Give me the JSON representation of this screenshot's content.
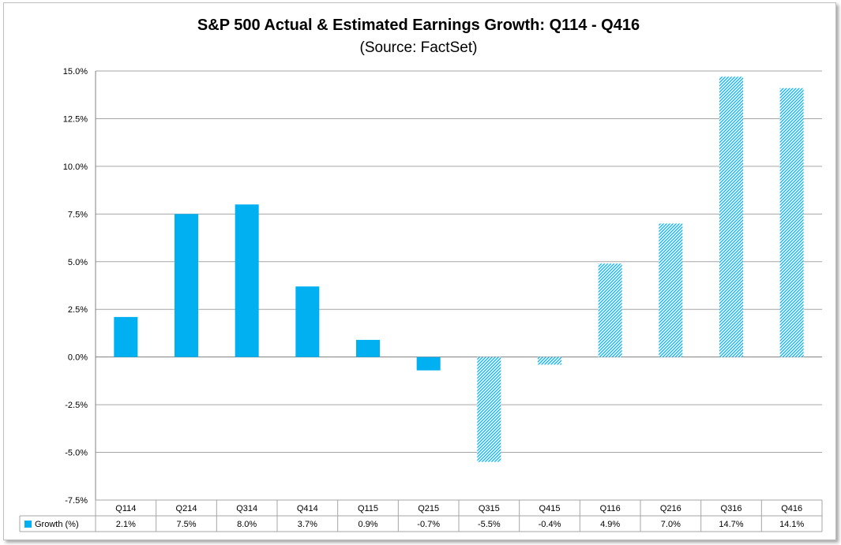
{
  "chart_data": {
    "type": "bar",
    "title": "S&P 500 Actual & Estimated Earnings Growth: Q114 - Q416",
    "subtitle": "(Source: FactSet)",
    "xlabel": "",
    "ylabel": "",
    "ylim": [
      -7.5,
      15.0
    ],
    "ytick_step": 2.5,
    "ytick_labels": [
      "15.0%",
      "12.5%",
      "10.0%",
      "7.5%",
      "5.0%",
      "2.5%",
      "0.0%",
      "-2.5%",
      "-5.0%",
      "-7.5%"
    ],
    "grid": true,
    "legend": "data-table-left",
    "categories": [
      "Q114",
      "Q214",
      "Q314",
      "Q414",
      "Q115",
      "Q215",
      "Q315",
      "Q415",
      "Q116",
      "Q216",
      "Q316",
      "Q416"
    ],
    "series": [
      {
        "name": "Growth (%)",
        "values": [
          2.1,
          7.5,
          8.0,
          3.7,
          0.9,
          -0.7,
          -5.5,
          -0.4,
          4.9,
          7.0,
          14.7,
          14.1
        ],
        "value_labels": [
          "2.1%",
          "7.5%",
          "8.0%",
          "3.7%",
          "0.9%",
          "-0.7%",
          "-5.5%",
          "-0.4%",
          "4.9%",
          "7.0%",
          "14.7%",
          "14.1%"
        ],
        "style": [
          "solid",
          "solid",
          "solid",
          "solid",
          "solid",
          "solid",
          "hatched",
          "hatched",
          "hatched",
          "hatched",
          "hatched",
          "hatched"
        ]
      }
    ],
    "colors": {
      "bar": "#00b0f0",
      "hatch": "#00b0f0",
      "grid": "#a6a6a6",
      "axis": "#808080"
    }
  }
}
